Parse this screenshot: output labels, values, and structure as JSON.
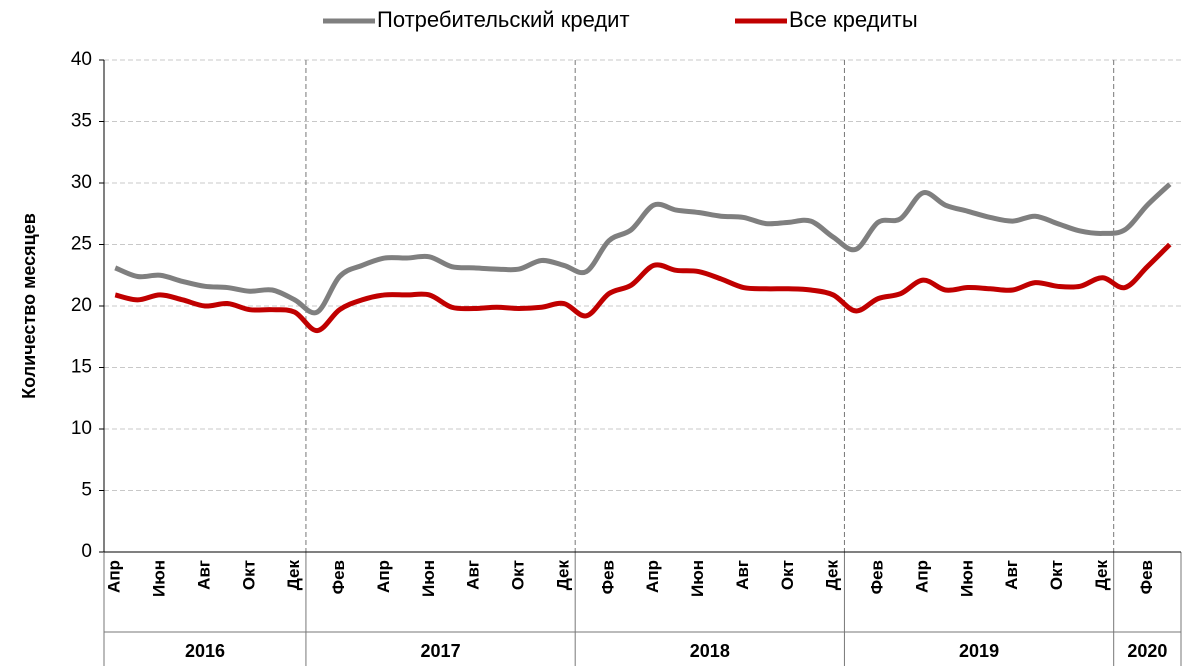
{
  "chart_data": {
    "type": "line",
    "y_label": "Количество месяцев",
    "categories": [
      "Апр",
      null,
      "Июн",
      null,
      "Авг",
      null,
      "Окт",
      null,
      "Дек",
      null,
      "Фев",
      null,
      "Апр",
      null,
      "Июн",
      null,
      "Авг",
      null,
      "Окт",
      null,
      "Дек",
      null,
      "Фев",
      null,
      "Апр",
      null,
      "Июн",
      null,
      "Авг",
      null,
      "Окт",
      null,
      "Дек",
      null,
      "Фев",
      null,
      "Апр",
      null,
      "Июн",
      null,
      "Авг",
      null,
      "Окт",
      null,
      "Дек",
      null,
      "Фев",
      null
    ],
    "years": [
      "2016",
      "2017",
      "2018",
      "2019",
      "2020"
    ],
    "series": [
      {
        "name": "Потребительский кредит",
        "color": "#7f7f7f",
        "values": [
          23.1,
          22.4,
          22.5,
          22.0,
          21.6,
          21.5,
          21.2,
          21.3,
          20.5,
          19.5,
          22.4,
          23.3,
          23.9,
          23.9,
          24.0,
          23.2,
          23.1,
          23.0,
          23.0,
          23.7,
          23.3,
          22.8,
          25.3,
          26.2,
          28.2,
          27.8,
          27.6,
          27.3,
          27.2,
          26.7,
          26.8,
          26.9,
          25.6,
          24.6,
          26.8,
          27.1,
          29.2,
          28.2,
          27.7,
          27.2,
          26.9,
          27.3,
          26.7,
          26.1,
          25.9,
          26.2,
          28.2,
          29.9
        ]
      },
      {
        "name": "Все кредиты",
        "color": "#c00000",
        "values": [
          20.9,
          20.5,
          20.9,
          20.5,
          20.0,
          20.2,
          19.7,
          19.7,
          19.5,
          18.0,
          19.7,
          20.5,
          20.9,
          20.9,
          20.9,
          19.9,
          19.8,
          19.9,
          19.8,
          19.9,
          20.2,
          19.2,
          21.0,
          21.7,
          23.3,
          22.9,
          22.8,
          22.2,
          21.5,
          21.4,
          21.4,
          21.3,
          20.9,
          19.6,
          20.6,
          21.0,
          22.1,
          21.3,
          21.5,
          21.4,
          21.3,
          21.9,
          21.6,
          21.6,
          22.3,
          21.5,
          23.2,
          25.0
        ]
      }
    ],
    "ylim": [
      0,
      40
    ],
    "yticks": [
      0,
      5,
      10,
      15,
      20,
      25,
      30,
      35,
      40
    ],
    "grid": true,
    "legend": "top"
  }
}
